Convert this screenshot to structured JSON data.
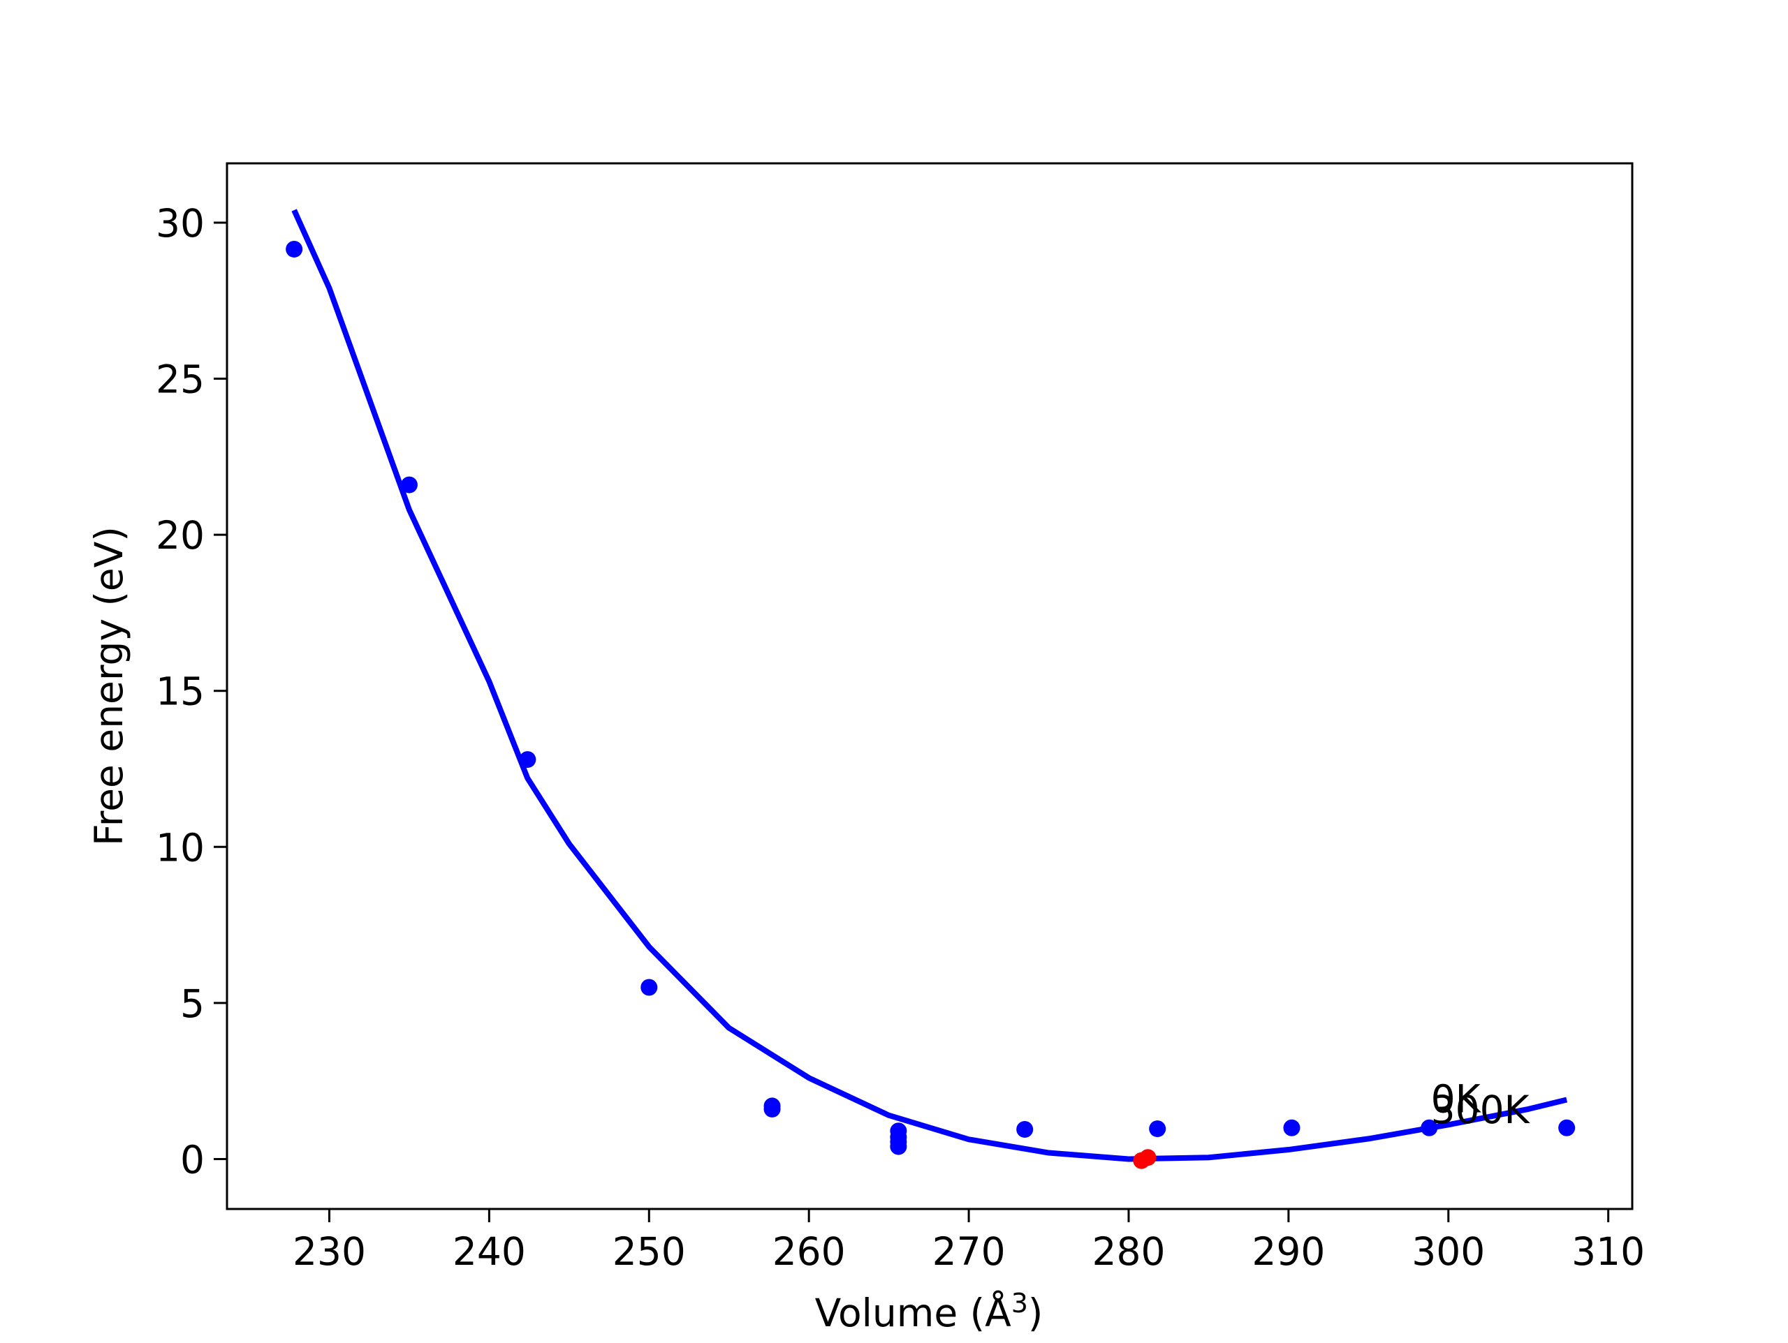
{
  "chart_data": {
    "type": "scatter",
    "xlabel": "Volume (Å",
    "xlabel_sup": "3",
    "xlabel_end": ")",
    "ylabel": "Free energy (eV)",
    "xlim": [
      223.6,
      311.5
    ],
    "xticks": [
      230,
      240,
      250,
      260,
      270,
      280,
      290,
      300,
      310
    ],
    "ylim": [
      -1.6,
      31.9
    ],
    "yticks": [
      0,
      5,
      10,
      15,
      20,
      25,
      30
    ],
    "grid": false,
    "series": [
      {
        "kind": "line",
        "color": "#0000ff",
        "x": [
          227.8,
          230,
          235,
          240,
          242.4,
          245,
          250,
          255,
          260,
          265,
          270,
          275,
          280,
          285,
          290,
          295,
          300,
          305,
          307.4
        ],
        "values": [
          30.4,
          27.9,
          20.8,
          15.3,
          12.2,
          10.1,
          6.8,
          4.2,
          2.6,
          1.4,
          0.63,
          0.2,
          0,
          0.05,
          0.3,
          0.65,
          1.1,
          1.6,
          1.9
        ]
      },
      {
        "kind": "scatter",
        "color": "#0000ff",
        "x": [
          227.8,
          235,
          242.4,
          250,
          257.7,
          257.7,
          265.6,
          265.6,
          265.6,
          265.6,
          273.5,
          281.8,
          290.2,
          298.8,
          307.4
        ],
        "values": [
          29.15,
          21.6,
          12.8,
          5.5,
          1.7,
          1.6,
          0.9,
          0.7,
          0.55,
          0.4,
          0.95,
          0.97,
          1.0,
          1.0,
          1.0
        ]
      },
      {
        "kind": "scatter",
        "color": "#ff0000",
        "x": [
          280.8,
          281.2
        ],
        "values": [
          -0.05,
          0.05
        ]
      }
    ],
    "annotations": [
      {
        "text": "0K",
        "x": 298.9,
        "y": 1.5
      },
      {
        "text": "300K",
        "x": 298.9,
        "y": 1.15
      }
    ]
  }
}
